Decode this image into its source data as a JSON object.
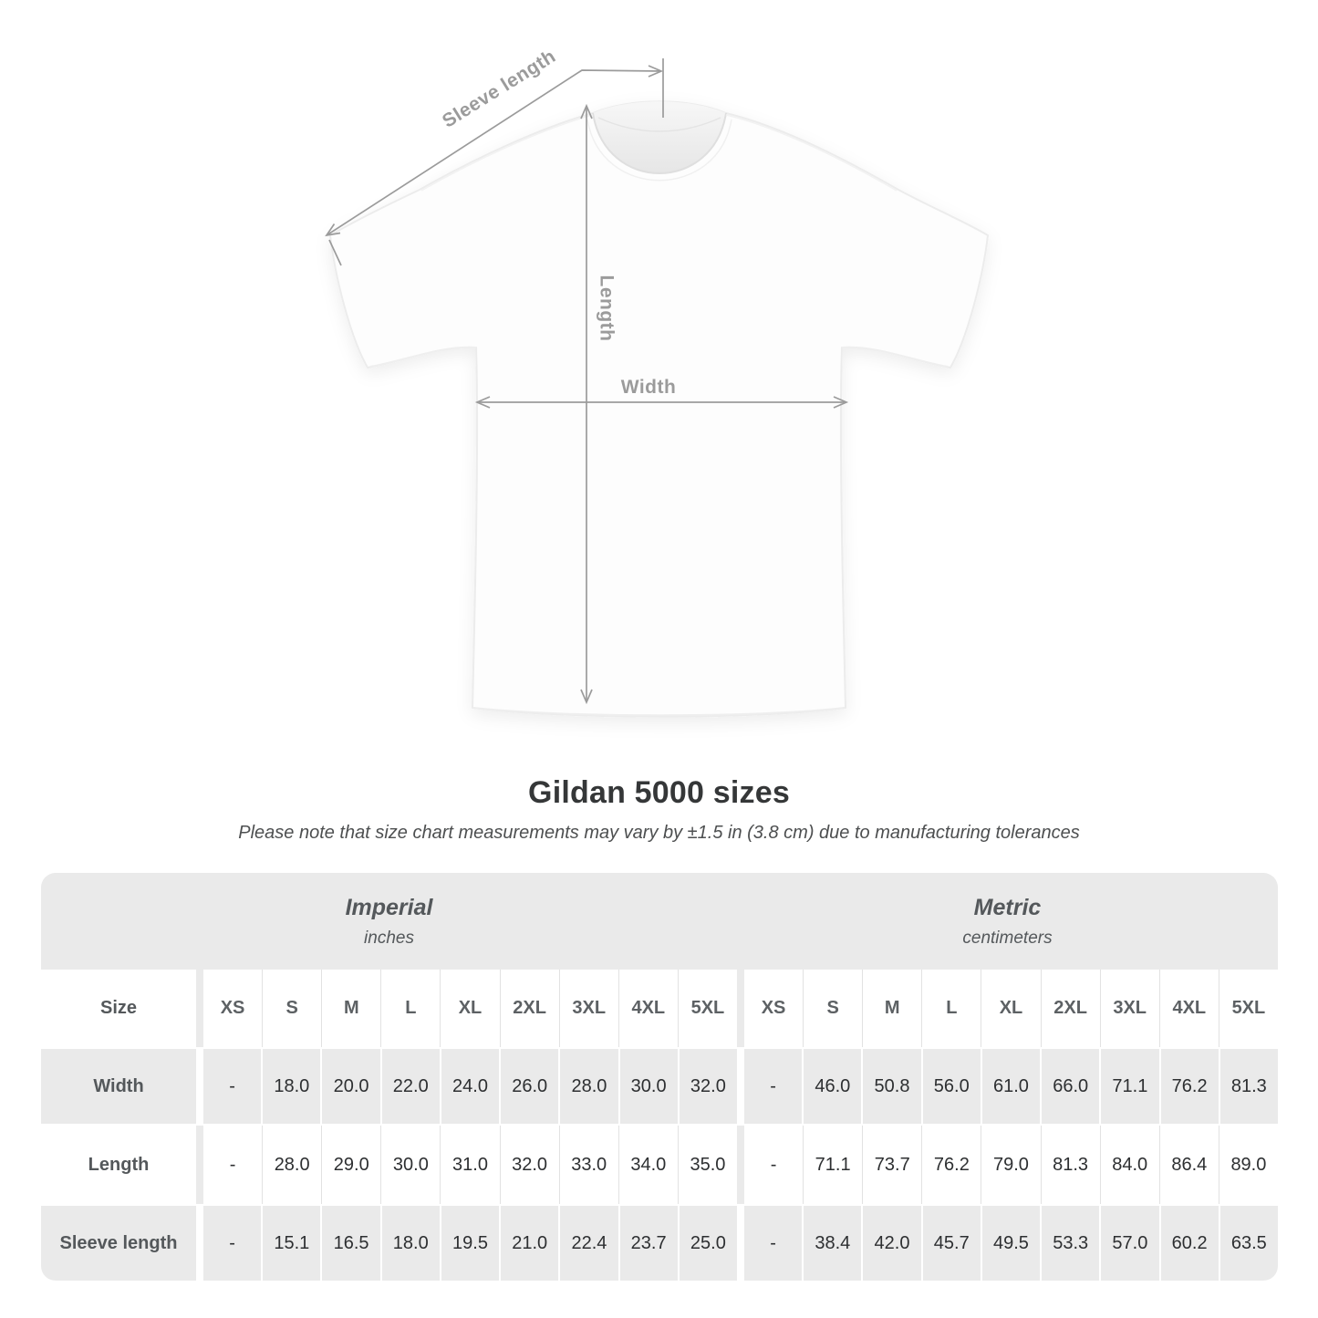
{
  "diagram": {
    "labels": {
      "sleeve_length": "Sleeve length",
      "length": "Length",
      "width": "Width"
    },
    "annotation_color": "#9b9b9b"
  },
  "title": "Gildan 5000 sizes",
  "note": "Please note that size chart measurements may vary by ±1.5 in (3.8 cm) due to manufacturing tolerances",
  "table": {
    "unit_groups": [
      {
        "name": "Imperial",
        "unit": "inches"
      },
      {
        "name": "Metric",
        "unit": "centimeters"
      }
    ],
    "size_label": "Size",
    "sizes": [
      "XS",
      "S",
      "M",
      "L",
      "XL",
      "2XL",
      "3XL",
      "4XL",
      "5XL"
    ],
    "rows": [
      {
        "label": "Width",
        "imperial": [
          "-",
          "18.0",
          "20.0",
          "22.0",
          "24.0",
          "26.0",
          "28.0",
          "30.0",
          "32.0"
        ],
        "metric": [
          "-",
          "46.0",
          "50.8",
          "56.0",
          "61.0",
          "66.0",
          "71.1",
          "76.2",
          "81.3"
        ]
      },
      {
        "label": "Length",
        "imperial": [
          "-",
          "28.0",
          "29.0",
          "30.0",
          "31.0",
          "32.0",
          "33.0",
          "34.0",
          "35.0"
        ],
        "metric": [
          "-",
          "71.1",
          "73.7",
          "76.2",
          "79.0",
          "81.3",
          "84.0",
          "86.4",
          "89.0"
        ]
      },
      {
        "label": "Sleeve length",
        "imperial": [
          "-",
          "15.1",
          "16.5",
          "18.0",
          "19.5",
          "21.0",
          "22.4",
          "23.7",
          "25.0"
        ],
        "metric": [
          "-",
          "38.4",
          "42.0",
          "45.7",
          "49.5",
          "53.3",
          "57.0",
          "60.2",
          "63.5"
        ]
      }
    ]
  },
  "colors": {
    "table_gray": "#eaeaea",
    "annotation_gray": "#9b9b9b"
  }
}
